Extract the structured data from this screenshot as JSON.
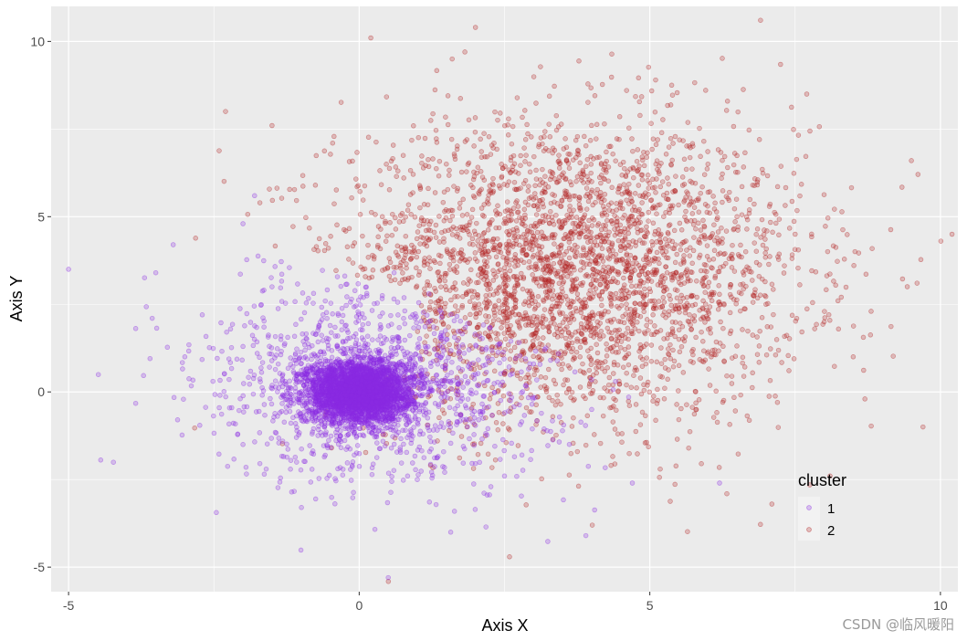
{
  "chart_data": {
    "type": "scatter",
    "title": "",
    "xlabel": "Axis X",
    "ylabel": "Axis Y",
    "xlim": [
      -5.3,
      10.3
    ],
    "ylim": [
      -5.7,
      11.0
    ],
    "x_ticks": [
      -5,
      0,
      5,
      10
    ],
    "y_ticks": [
      -5,
      0,
      5,
      10
    ],
    "x_tick_labels": [
      "-5",
      "0",
      "5",
      "10"
    ],
    "y_tick_labels": [
      "-5",
      "0",
      "5",
      "10"
    ],
    "grid": true,
    "background": "#ebebeb",
    "legend": {
      "title": "cluster",
      "position": "bottom-right-inside"
    },
    "series": [
      {
        "name": "1",
        "color": "#8a2be2",
        "approx_count": 4500,
        "points": [
          [
            0.0,
            0.0
          ],
          [
            -0.5,
            0.3
          ],
          [
            0.4,
            -0.4
          ],
          [
            0.6,
            0.5
          ],
          [
            -0.8,
            -0.6
          ],
          [
            1.0,
            0.2
          ],
          [
            -1.0,
            0.8
          ],
          [
            0.2,
            1.1
          ],
          [
            0.3,
            -1.2
          ],
          [
            1.5,
            1.5
          ],
          [
            2.0,
            0.5
          ],
          [
            1.2,
            2.8
          ],
          [
            -1.5,
            3.0
          ],
          [
            -2.0,
            4.8
          ],
          [
            -1.8,
            5.6
          ],
          [
            -3.2,
            4.2
          ],
          [
            -5.0,
            3.5
          ],
          [
            -3.5,
            3.4
          ],
          [
            -2.7,
            2.2
          ],
          [
            -3.0,
            1.0
          ],
          [
            -2.0,
            -1.5
          ],
          [
            -1.6,
            -2.2
          ],
          [
            1.0,
            -2.5
          ],
          [
            2.5,
            -2.4
          ],
          [
            3.9,
            -4.1
          ],
          [
            0.5,
            -5.3
          ],
          [
            6.2,
            -2.6
          ],
          [
            4.7,
            -2.6
          ],
          [
            0.6,
            3.4
          ],
          [
            3.0,
            0.8
          ],
          [
            4.0,
            -0.5
          ],
          [
            2.8,
            -1.8
          ],
          [
            -0.3,
            2.0
          ],
          [
            1.8,
            -0.8
          ],
          [
            -0.6,
            -1.0
          ]
        ]
      },
      {
        "name": "2",
        "color": "#b22222",
        "approx_count": 4500,
        "points": [
          [
            3.5,
            3.5
          ],
          [
            2.0,
            4.5
          ],
          [
            4.5,
            2.0
          ],
          [
            3.0,
            5.5
          ],
          [
            5.0,
            4.0
          ],
          [
            2.5,
            2.5
          ],
          [
            4.0,
            6.0
          ],
          [
            6.0,
            3.0
          ],
          [
            1.5,
            6.5
          ],
          [
            5.5,
            1.5
          ],
          [
            3.8,
            1.0
          ],
          [
            6.5,
            5.0
          ],
          [
            7.5,
            4.5
          ],
          [
            8.0,
            2.0
          ],
          [
            8.5,
            1.0
          ],
          [
            9.5,
            6.6
          ],
          [
            10.2,
            4.5
          ],
          [
            9.7,
            -1.0
          ],
          [
            8.7,
            -0.2
          ],
          [
            7.1,
            -3.2
          ],
          [
            8.1,
            -2.4
          ],
          [
            7.7,
            8.5
          ],
          [
            5.1,
            8.9
          ],
          [
            2.0,
            10.4
          ],
          [
            0.2,
            10.1
          ],
          [
            -2.3,
            8.0
          ],
          [
            -1.5,
            7.6
          ],
          [
            1.6,
            9.5
          ],
          [
            4.6,
            8.6
          ],
          [
            6.0,
            6.5
          ],
          [
            0.8,
            4.0
          ],
          [
            2.5,
            0.5
          ],
          [
            5.8,
            -0.5
          ],
          [
            4.3,
            7.0
          ],
          [
            7.0,
            2.5
          ]
        ]
      }
    ]
  },
  "watermark": "CSDN @临风暖阳"
}
